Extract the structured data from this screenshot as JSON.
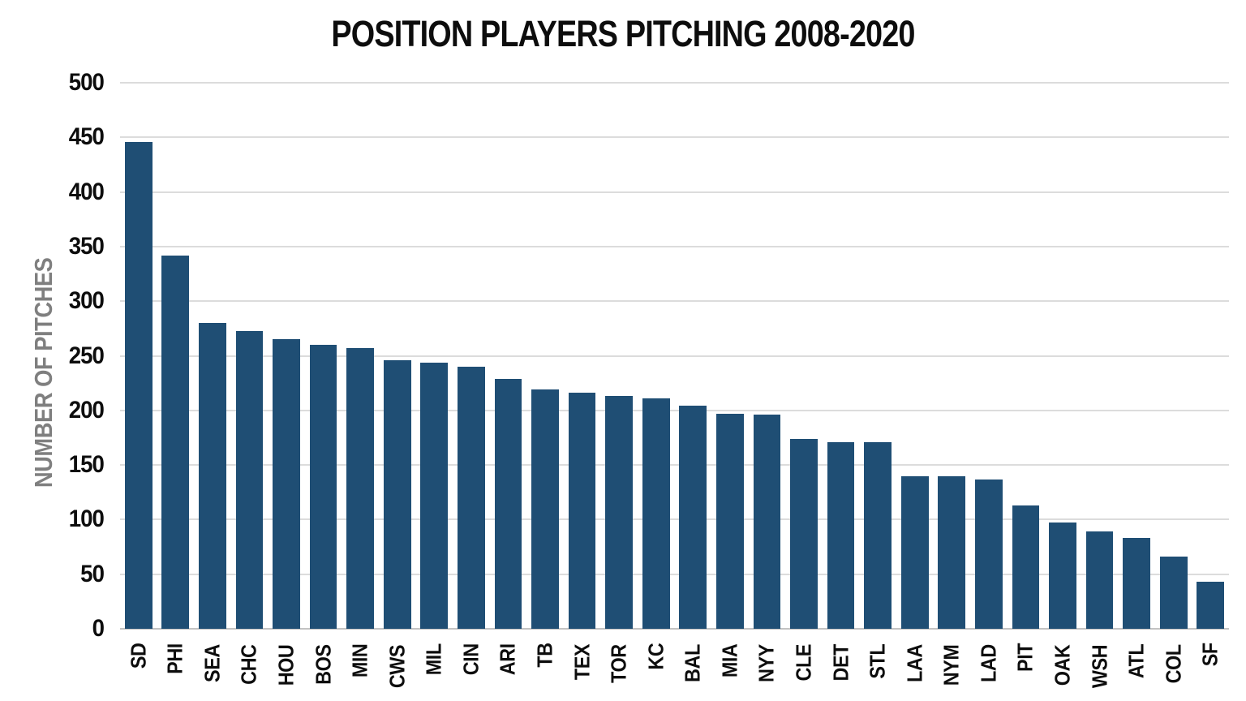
{
  "chart_data": {
    "type": "bar",
    "title": "POSITION PLAYERS PITCHING 2008-2020",
    "ylabel": "NUMBER OF PITCHES",
    "xlabel": "",
    "ylim": [
      0,
      500
    ],
    "ytick_step": 50,
    "grid": true,
    "legend": false,
    "categories": [
      "SD",
      "PHI",
      "SEA",
      "CHC",
      "HOU",
      "BOS",
      "MIN",
      "CWS",
      "MIL",
      "CIN",
      "ARI",
      "TB",
      "TEX",
      "TOR",
      "KC",
      "BAL",
      "MIA",
      "NYY",
      "CLE",
      "DET",
      "STL",
      "LAA",
      "NYM",
      "LAD",
      "PIT",
      "OAK",
      "WSH",
      "ATL",
      "COL",
      "SF"
    ],
    "values": [
      446,
      342,
      280,
      273,
      265,
      260,
      257,
      246,
      244,
      240,
      229,
      219,
      216,
      213,
      211,
      204,
      197,
      196,
      174,
      171,
      171,
      140,
      140,
      137,
      113,
      97,
      89,
      83,
      66,
      43
    ],
    "colors": {
      "bar": "#1f4e74",
      "gridline": "#dcdcdc",
      "baseline": "#c3c3c3",
      "title_text": "#0d0d0d",
      "tick_text": "#0d0d0d",
      "ylabel_text": "#7f7f7f",
      "background": "#ffffff"
    }
  }
}
